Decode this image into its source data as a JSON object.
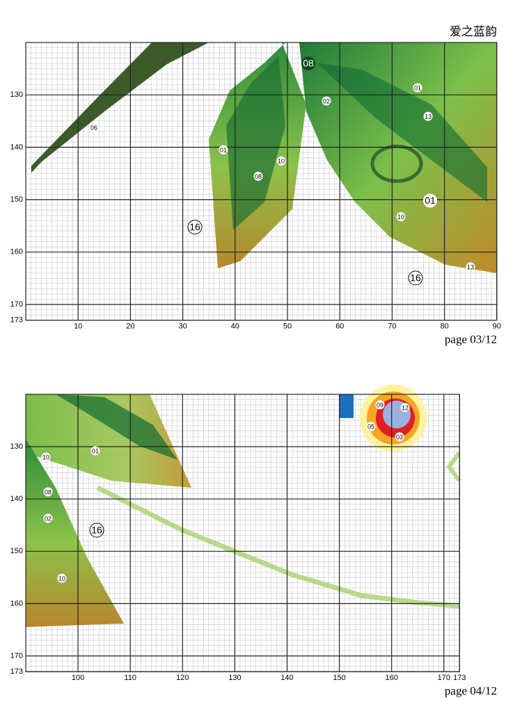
{
  "header": {
    "title": "爱之蓝韵"
  },
  "panels": [
    {
      "page": "page 03/12",
      "x_ticks": [
        10,
        20,
        30,
        40,
        50,
        60,
        70,
        80,
        90
      ],
      "y_ticks": [
        130,
        140,
        150,
        160,
        170,
        173
      ],
      "symbols": [
        "08",
        "01",
        "02",
        "13",
        "06",
        "01",
        "10",
        "08",
        "01",
        "10",
        "16",
        "16",
        "13"
      ]
    },
    {
      "page": "page 04/12",
      "x_ticks": [
        100,
        110,
        120,
        130,
        140,
        150,
        160,
        170,
        173
      ],
      "y_ticks": [
        130,
        140,
        150,
        160,
        170,
        173
      ],
      "symbols": [
        "09",
        "12",
        "05",
        "03",
        "10",
        "01",
        "08",
        "02",
        "16",
        "10"
      ]
    }
  ]
}
